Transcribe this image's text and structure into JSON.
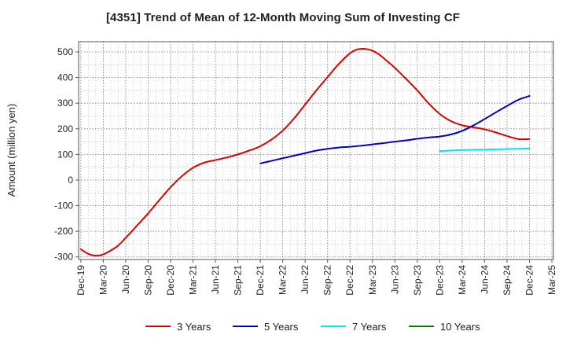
{
  "chart_data": {
    "type": "line",
    "title": "[4351]  Trend of Mean of 12-Month Moving Sum of Investing CF",
    "xlabel": "",
    "ylabel": "Amount (million yen)",
    "ylim": [
      -310,
      540
    ],
    "yticks": [
      500,
      400,
      300,
      200,
      100,
      0,
      -100,
      -200,
      -300
    ],
    "ytick_labels": [
      "500",
      "400",
      "300",
      "200",
      "100",
      "0",
      "-100",
      "-200",
      "-300"
    ],
    "xtick_labels": [
      "Dec-19",
      "Mar-20",
      "Jun-20",
      "Sep-20",
      "Dec-20",
      "Mar-21",
      "Jun-21",
      "Sep-21",
      "Dec-21",
      "Mar-22",
      "Jun-22",
      "Sep-22",
      "Dec-22",
      "Mar-23",
      "Jun-23",
      "Sep-23",
      "Dec-23",
      "Mar-24",
      "Jun-24",
      "Sep-24",
      "Dec-24",
      "Mar-25"
    ],
    "x_unit": "quarter index from Dec-19",
    "grid": true,
    "legend_position": "bottom",
    "series": [
      {
        "name": "3 Years",
        "color": "#e00000",
        "x": [
          0,
          0.33,
          0.67,
          1,
          1.33,
          1.67,
          2,
          2.5,
          3,
          3.5,
          4,
          4.5,
          5,
          5.5,
          6,
          6.5,
          7,
          7.5,
          8,
          8.5,
          9,
          9.5,
          10,
          10.5,
          11,
          11.5,
          12,
          12.33,
          12.67,
          13,
          13.33,
          13.67,
          14,
          14.5,
          15,
          15.5,
          16,
          16.5,
          17,
          17.5,
          18,
          18.5,
          19,
          19.5,
          20
        ],
        "values": [
          -270,
          -288,
          -295,
          -290,
          -275,
          -255,
          -225,
          -178,
          -130,
          -78,
          -28,
          15,
          48,
          68,
          78,
          88,
          100,
          115,
          132,
          158,
          193,
          240,
          295,
          350,
          402,
          453,
          495,
          510,
          512,
          505,
          488,
          463,
          438,
          395,
          350,
          300,
          258,
          230,
          214,
          206,
          198,
          186,
          172,
          160,
          160
        ]
      },
      {
        "name": "5 Years",
        "color": "#0000cc",
        "x": [
          8,
          8.5,
          9,
          9.5,
          10,
          10.5,
          11,
          11.5,
          12,
          12.5,
          13,
          13.5,
          14,
          14.5,
          15,
          15.5,
          16,
          16.5,
          17,
          17.5,
          18,
          18.5,
          19,
          19.5,
          20
        ],
        "values": [
          65,
          75,
          85,
          95,
          105,
          115,
          122,
          127,
          130,
          134,
          139,
          144,
          150,
          155,
          161,
          166,
          170,
          178,
          192,
          213,
          238,
          264,
          289,
          313,
          328
        ]
      },
      {
        "name": "7 Years",
        "color": "#00e5ee",
        "x": [
          16,
          16.5,
          17,
          17.5,
          18,
          18.5,
          19,
          19.5,
          20
        ],
        "values": [
          113,
          115,
          117,
          118,
          119,
          120,
          121,
          122,
          123
        ]
      },
      {
        "name": "10 Years",
        "color": "#008000",
        "x": [],
        "values": []
      }
    ]
  }
}
